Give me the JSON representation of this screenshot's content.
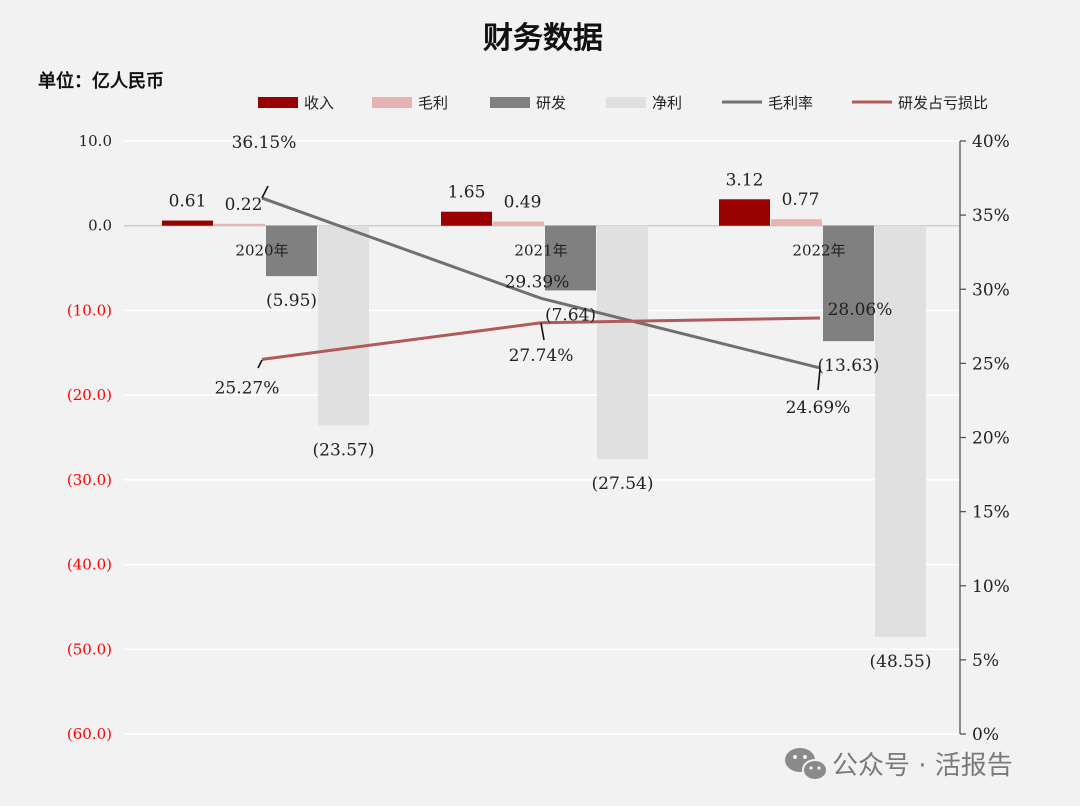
{
  "chart_data": {
    "type": "bar",
    "title": "财务数据",
    "unit_label": "单位：亿人民币",
    "categories": [
      "2020年",
      "2021年",
      "2022年"
    ],
    "series": [
      {
        "name": "收入",
        "type": "bar",
        "values": [
          0.61,
          1.65,
          3.12
        ],
        "labels": [
          "0.61",
          "1.65",
          "3.12"
        ],
        "color": "#990000"
      },
      {
        "name": "毛利",
        "type": "bar",
        "values": [
          0.22,
          0.49,
          0.77
        ],
        "labels": [
          "0.22",
          "0.49",
          "0.77"
        ],
        "color": "#e6b3b3"
      },
      {
        "name": "研发",
        "type": "bar",
        "values": [
          -5.95,
          -7.64,
          -13.63
        ],
        "labels": [
          "(5.95)",
          "(7.64)",
          "(13.63)"
        ],
        "color": "#808080"
      },
      {
        "name": "净利",
        "type": "bar",
        "values": [
          -23.57,
          -27.54,
          -48.55
        ],
        "labels": [
          "(23.57)",
          "(27.54)",
          "(48.55)"
        ],
        "color": "#e0e0e0"
      },
      {
        "name": "毛利率",
        "type": "line",
        "axis": "right",
        "values": [
          36.15,
          29.39,
          24.69
        ],
        "labels": [
          "36.15%",
          "29.39%",
          "24.69%"
        ],
        "color": "#707070"
      },
      {
        "name": "研发占亏损比",
        "type": "line",
        "axis": "right",
        "values": [
          25.27,
          27.74,
          28.06
        ],
        "labels": [
          "25.27%",
          "27.74%",
          "28.06%"
        ],
        "color": "#b05a5a"
      }
    ],
    "left_axis": {
      "ylim": [
        -60,
        10
      ],
      "ticks": [
        "10.0",
        "0.0",
        "(10.0)",
        "(20.0)",
        "(30.0)",
        "(40.0)",
        "(50.0)",
        "(60.0)"
      ],
      "tick_values": [
        10,
        0,
        -10,
        -20,
        -30,
        -40,
        -50,
        -60
      ]
    },
    "right_axis": {
      "ylim": [
        0,
        40
      ],
      "ticks": [
        "40%",
        "35%",
        "30%",
        "25%",
        "20%",
        "15%",
        "10%",
        "5%",
        "0%"
      ],
      "tick_values": [
        40,
        35,
        30,
        25,
        20,
        15,
        10,
        5,
        0
      ]
    },
    "grid": true,
    "legend_position": "top",
    "negative_color": "#ff0000"
  },
  "watermark": "公众号 · 活报告"
}
